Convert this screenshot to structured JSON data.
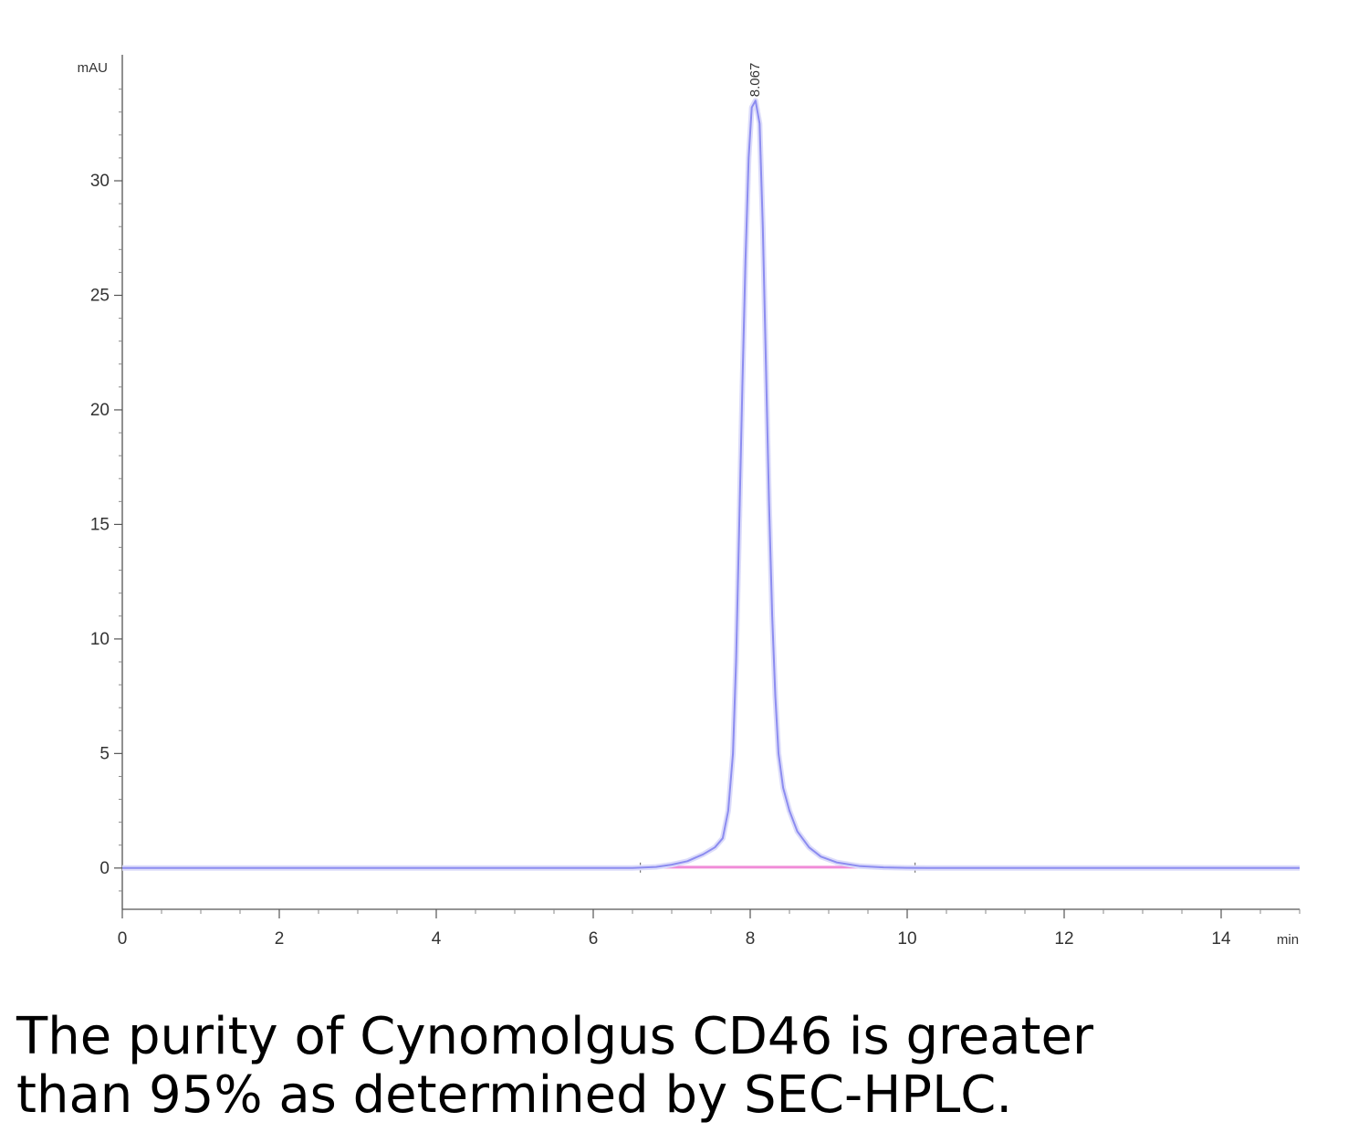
{
  "chart_data": {
    "type": "line",
    "title": "",
    "xlabel": "min",
    "ylabel": "mAU",
    "xlim": [
      0,
      15
    ],
    "ylim": [
      -1.8,
      35.5
    ],
    "x_ticks": [
      "0",
      "2",
      "4",
      "6",
      "8",
      "10",
      "12",
      "14"
    ],
    "y_ticks": [
      "0",
      "5",
      "10",
      "15",
      "20",
      "25",
      "30"
    ],
    "peak_label": "8.067",
    "grid": false,
    "series": [
      {
        "color": "#8c8cf0",
        "x": [
          0,
          6.5,
          6.8,
          7.0,
          7.2,
          7.4,
          7.55,
          7.65,
          7.72,
          7.78,
          7.82,
          7.86,
          7.9,
          7.94,
          7.98,
          8.02,
          8.067,
          8.12,
          8.16,
          8.2,
          8.24,
          8.28,
          8.32,
          8.36,
          8.42,
          8.5,
          8.6,
          8.75,
          8.9,
          9.1,
          9.4,
          9.7,
          10.0,
          10.5,
          15
        ],
        "y": [
          0,
          0,
          0.05,
          0.15,
          0.3,
          0.6,
          0.9,
          1.3,
          2.5,
          5.0,
          9.0,
          15.0,
          21.0,
          26.5,
          31.0,
          33.2,
          33.5,
          32.5,
          28.0,
          22.0,
          16.0,
          11.0,
          7.5,
          5.0,
          3.5,
          2.5,
          1.6,
          0.9,
          0.5,
          0.25,
          0.08,
          0.03,
          0.01,
          0,
          0
        ]
      }
    ],
    "baseline": {
      "color": "#f08cd8",
      "x": [
        6.6,
        10.1
      ],
      "y": [
        0,
        0
      ]
    }
  },
  "caption": {
    "line1": "The purity of Cynomolgus CD46 is greater",
    "line2": "than 95% as determined by SEC-HPLC."
  }
}
